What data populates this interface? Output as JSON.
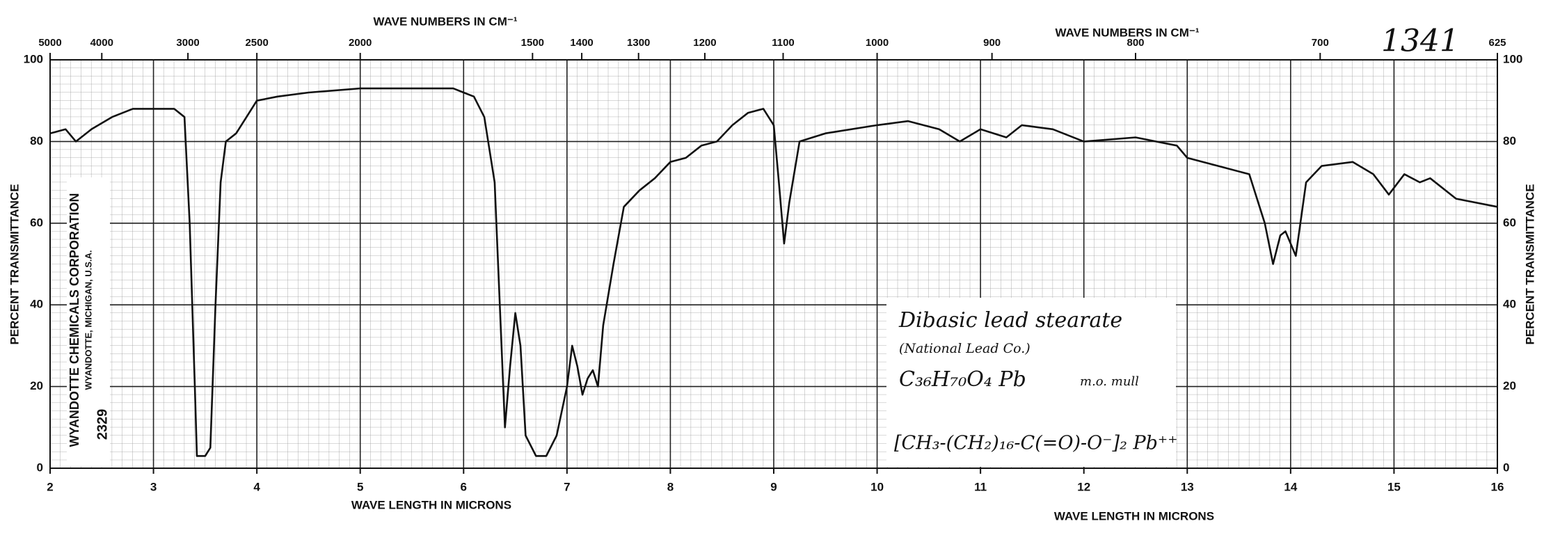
{
  "chart_data": {
    "type": "line",
    "x2label": "WAVE NUMBERS IN CM⁻¹",
    "xlabel": "WAVE LENGTH IN MICRONS",
    "ylabel": "PERCENT TRANSMITTANCE",
    "catalog_number": "1341",
    "maker": "WYANDOTTE CHEMICALS CORPORATION",
    "maker_location": "WYANDOTTE, MICHIGAN, U.S.A.",
    "chart_number": "2329",
    "annotations": [
      "Dibasic lead stearate",
      "(National Lead Co.)",
      "C₃₆H₇₀O₄ Pb",
      "m.o. mull",
      "[CH₃-(CH₂)₁₆-C(=O)-O⁻]₂ Pb⁺⁺"
    ],
    "x": [
      2.0,
      2.15,
      2.25,
      2.4,
      2.6,
      2.8,
      3.0,
      3.2,
      3.3,
      3.35,
      3.4,
      3.42,
      3.5,
      3.55,
      3.6,
      3.65,
      3.7,
      3.8,
      3.9,
      4.0,
      4.2,
      4.5,
      5.0,
      5.5,
      5.9,
      6.0,
      6.1,
      6.2,
      6.3,
      6.35,
      6.4,
      6.45,
      6.5,
      6.55,
      6.6,
      6.7,
      6.8,
      6.9,
      7.0,
      7.05,
      7.1,
      7.15,
      7.2,
      7.25,
      7.3,
      7.35,
      7.45,
      7.55,
      7.7,
      7.85,
      8.0,
      8.15,
      8.3,
      8.45,
      8.6,
      8.75,
      8.9,
      9.0,
      9.05,
      9.1,
      9.15,
      9.25,
      9.5,
      10.0,
      10.3,
      10.6,
      10.8,
      11.0,
      11.25,
      11.4,
      11.7,
      12.0,
      12.5,
      12.9,
      13.0,
      13.3,
      13.6,
      13.75,
      13.83,
      13.9,
      13.95,
      14.05,
      14.15,
      14.3,
      14.6,
      14.8,
      14.95,
      15.1,
      15.25,
      15.35,
      15.6,
      16.0
    ],
    "values": [
      82,
      83,
      80,
      83,
      86,
      88,
      88,
      88,
      86,
      60,
      20,
      3,
      3,
      5,
      40,
      70,
      80,
      82,
      86,
      90,
      91,
      92,
      93,
      93,
      93,
      92,
      91,
      86,
      70,
      40,
      10,
      25,
      38,
      30,
      8,
      3,
      3,
      8,
      20,
      30,
      25,
      18,
      22,
      24,
      20,
      35,
      50,
      64,
      68,
      71,
      75,
      76,
      79,
      80,
      84,
      87,
      88,
      84,
      70,
      55,
      65,
      80,
      82,
      84,
      85,
      83,
      80,
      83,
      81,
      84,
      83,
      80,
      81,
      79,
      76,
      74,
      72,
      60,
      50,
      57,
      58,
      52,
      70,
      74,
      75,
      72,
      67,
      72,
      70,
      71,
      66,
      64
    ],
    "color": "#111111",
    "xlim": [
      2,
      16
    ],
    "xticks": [
      2,
      3,
      4,
      5,
      6,
      7,
      8,
      9,
      10,
      11,
      12,
      13,
      14,
      15,
      16
    ],
    "x2ticks": [
      5000,
      4000,
      3000,
      2500,
      2000,
      1500,
      1400,
      1300,
      1200,
      1100,
      1000,
      900,
      800,
      700,
      625
    ],
    "ylim": [
      0,
      100
    ],
    "yticks": [
      0,
      20,
      40,
      60,
      80,
      100
    ],
    "grid": true
  }
}
